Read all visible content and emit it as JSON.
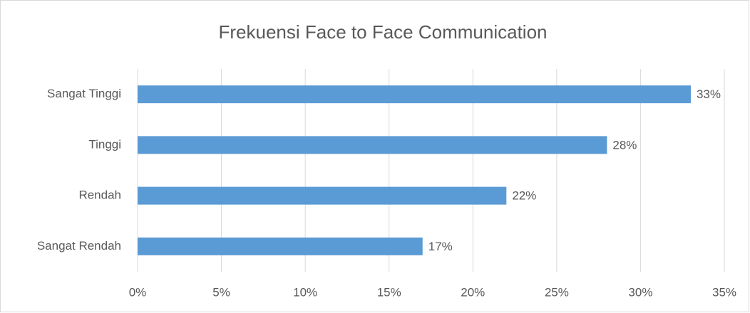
{
  "chart_data": {
    "type": "bar",
    "orientation": "horizontal",
    "title": "Frekuensi Face to Face Communication",
    "categories": [
      "Sangat Tinggi",
      "Tinggi",
      "Rendah",
      "Sangat Rendah"
    ],
    "values": [
      33,
      28,
      22,
      17
    ],
    "value_labels": [
      "33%",
      "28%",
      "22%",
      "17%"
    ],
    "color": "#5b9bd5",
    "xlim": [
      0,
      35
    ],
    "xticks": [
      {
        "value": 0,
        "label": "0%"
      },
      {
        "value": 5,
        "label": "5%"
      },
      {
        "value": 10,
        "label": "10%"
      },
      {
        "value": 15,
        "label": "15%"
      },
      {
        "value": 20,
        "label": "20%"
      },
      {
        "value": 25,
        "label": "25%"
      },
      {
        "value": 30,
        "label": "30%"
      },
      {
        "value": 35,
        "label": "35%"
      }
    ],
    "grid": true
  }
}
